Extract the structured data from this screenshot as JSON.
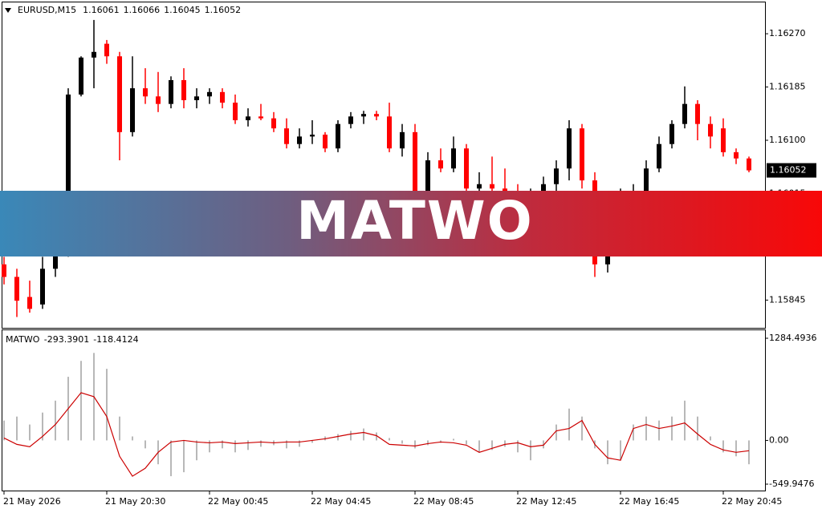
{
  "chart_data": [
    {
      "type": "candlestick",
      "title": "EURUSD,M15",
      "ohlc": [
        1.16061,
        1.16066,
        1.16045,
        1.16052
      ],
      "last_price": 1.16052,
      "bull_color": "#000000",
      "bear_color": "#ff0000",
      "categories": [
        "21 May 2026",
        null,
        null,
        null,
        null,
        null,
        null,
        null,
        "21 May 20:30",
        null,
        null,
        null,
        null,
        null,
        null,
        null,
        "22 May 00:45",
        null,
        null,
        null,
        null,
        null,
        null,
        null,
        "22 May 04:45",
        null,
        null,
        null,
        null,
        null,
        null,
        null,
        "22 May 08:45",
        null,
        null,
        null,
        null,
        null,
        null,
        null,
        "22 May 12:45",
        null,
        null,
        null,
        null,
        null,
        null,
        null,
        "22 May 16:45",
        null,
        null,
        null,
        null,
        null,
        null,
        null,
        "22 May 20:45",
        null,
        null
      ],
      "open": [
        1.15902,
        1.15882,
        1.1585,
        1.15838,
        1.15895,
        1.1594,
        1.16173,
        1.16232,
        1.16254,
        1.16234,
        1.16113,
        1.16183,
        1.1617,
        1.16158,
        1.16196,
        1.16164,
        1.1617,
        1.16177,
        1.1616,
        1.16132,
        1.16138,
        1.16135,
        1.16119,
        1.16094,
        1.16106,
        1.16109,
        1.16087,
        1.16126,
        1.16138,
        1.16142,
        1.16138,
        1.16087,
        1.16113,
        1.16017,
        1.16068,
        1.16055,
        1.16087,
        1.16023,
        1.1603,
        1.16023,
        1.1601,
        1.16004,
        1.16017,
        1.1603,
        1.16055,
        1.16119,
        1.16036,
        1.15902,
        1.1594,
        1.16017,
        1.16019,
        1.16055,
        1.16094,
        1.16126,
        1.16158,
        1.16126,
        1.16119,
        1.16081,
        1.16071
      ],
      "high": [
        1.15914,
        1.15895,
        1.15876,
        1.15914,
        1.15966,
        1.16183,
        1.16234,
        1.16292,
        1.1626,
        1.16241,
        1.16234,
        1.16215,
        1.16209,
        1.16202,
        1.16215,
        1.16183,
        1.16183,
        1.16183,
        1.16173,
        1.16151,
        1.16158,
        1.16145,
        1.16135,
        1.16119,
        1.16132,
        1.16113,
        1.16132,
        1.16145,
        1.16147,
        1.16147,
        1.1616,
        1.16126,
        1.16126,
        1.16081,
        1.16087,
        1.16106,
        1.16094,
        1.16049,
        1.16074,
        1.16055,
        1.1603,
        1.16023,
        1.16042,
        1.16068,
        1.16132,
        1.16126,
        1.16049,
        1.15953,
        1.16023,
        1.1603,
        1.16068,
        1.16106,
        1.16132,
        1.16186,
        1.16164,
        1.16138,
        1.16135,
        1.16087,
        1.16074
      ],
      "low": [
        1.1587,
        1.15818,
        1.15825,
        1.15831,
        1.15882,
        1.15914,
        1.1617,
        1.16183,
        1.16222,
        1.16068,
        1.16106,
        1.16158,
        1.16145,
        1.16151,
        1.16151,
        1.16151,
        1.16158,
        1.16151,
        1.16126,
        1.16122,
        1.16132,
        1.16113,
        1.16087,
        1.16087,
        1.16094,
        1.16081,
        1.16081,
        1.16119,
        1.16126,
        1.16132,
        1.16081,
        1.16074,
        1.1601,
        1.16004,
        1.16049,
        1.16049,
        1.16017,
        1.15991,
        1.1601,
        1.15998,
        1.15978,
        1.15985,
        1.15998,
        1.16017,
        1.16036,
        1.16023,
        1.15882,
        1.15889,
        1.15934,
        1.16004,
        1.1601,
        1.16049,
        1.16087,
        1.16119,
        1.161,
        1.16087,
        1.16074,
        1.16062,
        1.16049
      ],
      "close": [
        1.15882,
        1.15844,
        1.15831,
        1.15895,
        1.15953,
        1.16173,
        1.16232,
        1.16241,
        1.16234,
        1.16113,
        1.16183,
        1.1617,
        1.16158,
        1.16196,
        1.16164,
        1.1617,
        1.16177,
        1.1616,
        1.16132,
        1.16138,
        1.16135,
        1.16119,
        1.16094,
        1.16106,
        1.16109,
        1.16087,
        1.16126,
        1.16138,
        1.16142,
        1.16138,
        1.16087,
        1.16113,
        1.16017,
        1.16068,
        1.16055,
        1.16087,
        1.16023,
        1.1603,
        1.16023,
        1.1601,
        1.16004,
        1.16017,
        1.1603,
        1.16055,
        1.16119,
        1.16036,
        1.15902,
        1.1594,
        1.16017,
        1.16019,
        1.16055,
        1.16094,
        1.16126,
        1.16158,
        1.16126,
        1.16106,
        1.16081,
        1.16071,
        1.16052
      ],
      "ylim": [
        1.15802,
        1.1632
      ],
      "yticks": [
        {
          "value": 1.1627,
          "label": "1.16270"
        },
        1.16185,
        {
          "value": 1.161,
          "label": "1.16100"
        },
        1.16015,
        {
          "value": 1.1593,
          "label": "1.15930"
        },
        1.15845
      ]
    },
    {
      "type": "oscillator",
      "title": "MATWO",
      "header_values": [
        -293.3901,
        -118.4124
      ],
      "histogram": {
        "color": "#a0a0a0",
        "values": [
          250,
          300,
          200,
          350,
          500,
          800,
          1000,
          1100,
          900,
          300,
          50,
          -100,
          -300,
          -450,
          -400,
          -250,
          -150,
          -100,
          -150,
          -120,
          -80,
          -60,
          -100,
          -80,
          -30,
          50,
          80,
          120,
          150,
          100,
          30,
          -40,
          -100,
          -60,
          -30,
          20,
          -50,
          -150,
          -120,
          -80,
          -150,
          -250,
          -100,
          200,
          400,
          300,
          -100,
          -300,
          -250,
          200,
          300,
          250,
          300,
          500,
          300,
          50,
          -150,
          -200,
          -300
        ]
      },
      "signal": {
        "color": "#cc0000",
        "values": [
          30,
          -50,
          -80,
          50,
          200,
          400,
          600,
          550,
          300,
          -200,
          -450,
          -350,
          -150,
          -20,
          0,
          -20,
          -30,
          -20,
          -40,
          -30,
          -20,
          -30,
          -20,
          -20,
          0,
          20,
          50,
          80,
          100,
          60,
          -50,
          -60,
          -70,
          -40,
          -20,
          -30,
          -60,
          -150,
          -100,
          -50,
          -30,
          -80,
          -60,
          120,
          150,
          250,
          -50,
          -220,
          -250,
          150,
          200,
          150,
          180,
          220,
          80,
          -50,
          -120,
          -150,
          -130
        ]
      },
      "ylim": [
        -549.9476,
        1284.4936
      ],
      "yticks": [
        1284.4936,
        {
          "value": 0,
          "label": "0.00"
        },
        -549.9476
      ]
    }
  ],
  "banner": "MATWO"
}
